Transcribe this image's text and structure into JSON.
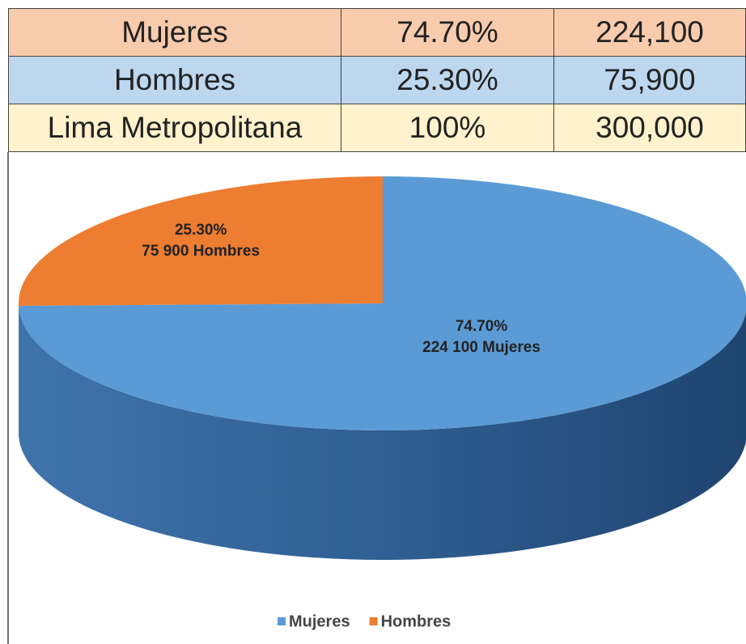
{
  "table": {
    "rows": [
      [
        "Mujeres",
        "74.70%",
        "224,100"
      ],
      [
        "Hombres",
        "25.30%",
        "75,900"
      ],
      [
        "Lima Metropolitana",
        "100%",
        "300,000"
      ]
    ]
  },
  "chart_data": {
    "type": "pie",
    "categories": [
      "Mujeres",
      "Hombres"
    ],
    "values": [
      74.7,
      25.3
    ],
    "value_labels": [
      "74.70%",
      "25.30%"
    ],
    "count_labels": [
      "224 100 Mujeres",
      "75 900 Hombres"
    ],
    "colors": [
      "#5b9bd5",
      "#ed7d31"
    ],
    "legend": "bottom"
  }
}
